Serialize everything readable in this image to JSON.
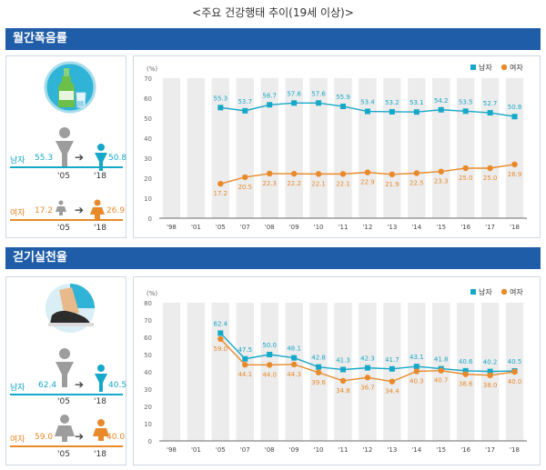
{
  "page_title": "<주요 건강행태 추이(19세 이상)>",
  "sections": [
    {
      "title": "월간폭음률",
      "summary": {
        "male_label": "남자",
        "male_from": "55.3",
        "male_to": "50.8",
        "female_label": "여자",
        "female_from": "17.2",
        "female_to": "26.9",
        "year_from": "'05",
        "year_to": "'18"
      }
    },
    {
      "title": "걷기실천율",
      "summary": {
        "male_label": "남자",
        "male_from": "62.4",
        "male_to": "40.5",
        "female_label": "여자",
        "female_from": "59.0",
        "female_to": "40.0",
        "year_from": "'05",
        "year_to": "'18"
      }
    }
  ],
  "colors": {
    "male": "#16a8c8",
    "female": "#e88a2a",
    "header": "#1f5da8",
    "band": "#ececec"
  },
  "chart_data": [
    {
      "type": "line",
      "title": "월간폭음률",
      "ylabel": "(%)",
      "ylim": [
        0,
        70
      ],
      "yticks": [
        "0",
        "10",
        "20",
        "30",
        "40",
        "50",
        "60",
        "70"
      ],
      "categories": [
        "'98",
        "'01",
        "'05",
        "'07",
        "'08",
        "'09",
        "'10",
        "'11",
        "'12",
        "'13",
        "'14",
        "'15",
        "'16",
        "'17",
        "'18"
      ],
      "legend": "top-right",
      "series": [
        {
          "name": "남자",
          "marker": "square",
          "values": [
            null,
            null,
            55.3,
            53.7,
            56.7,
            57.6,
            57.6,
            55.9,
            53.4,
            53.2,
            53.1,
            54.2,
            53.5,
            52.7,
            50.8
          ]
        },
        {
          "name": "여자",
          "marker": "circle",
          "values": [
            null,
            null,
            17.2,
            20.5,
            22.3,
            22.2,
            22.1,
            22.1,
            22.9,
            21.9,
            22.5,
            23.3,
            25.0,
            25.0,
            26.9
          ]
        }
      ]
    },
    {
      "type": "line",
      "title": "걷기실천율",
      "ylabel": "(%)",
      "ylim": [
        0,
        80
      ],
      "yticks": [
        "0",
        "10",
        "20",
        "30",
        "40",
        "50",
        "60",
        "70",
        "80"
      ],
      "categories": [
        "'98",
        "'01",
        "'05",
        "'07",
        "'08",
        "'09",
        "'10",
        "'11",
        "'12",
        "'13",
        "'14",
        "'15",
        "'16",
        "'17",
        "'18"
      ],
      "legend": "top-right",
      "series": [
        {
          "name": "남자",
          "marker": "square",
          "values": [
            null,
            null,
            62.4,
            47.5,
            50.0,
            48.1,
            42.8,
            41.3,
            42.3,
            41.7,
            43.1,
            41.8,
            40.6,
            40.2,
            40.5
          ]
        },
        {
          "name": "여자",
          "marker": "circle",
          "values": [
            null,
            null,
            59.0,
            44.1,
            44.0,
            44.3,
            39.6,
            34.8,
            36.7,
            34.4,
            40.3,
            40.7,
            38.6,
            38.0,
            40.0
          ]
        }
      ]
    }
  ]
}
